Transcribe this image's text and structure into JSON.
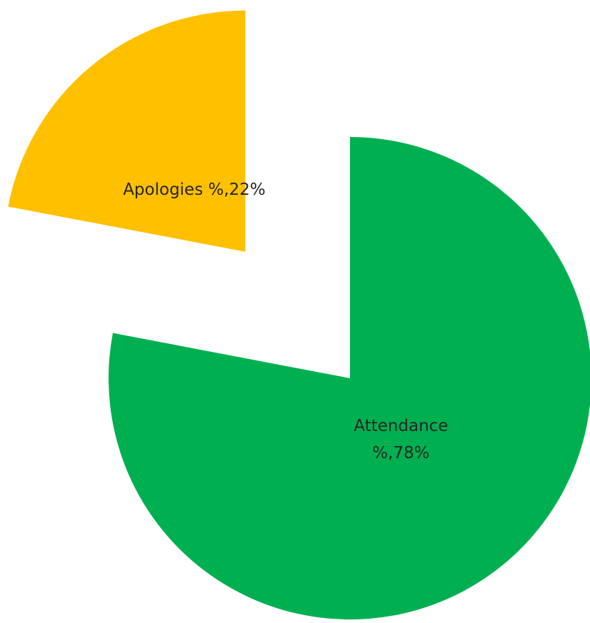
{
  "chart_data": {
    "type": "pie",
    "values": [
      78,
      22
    ],
    "value_labels": [
      "Attendance %,78%",
      "Apologies %,22%"
    ],
    "colors": [
      "#00b050",
      "#ffc000"
    ]
  }
}
